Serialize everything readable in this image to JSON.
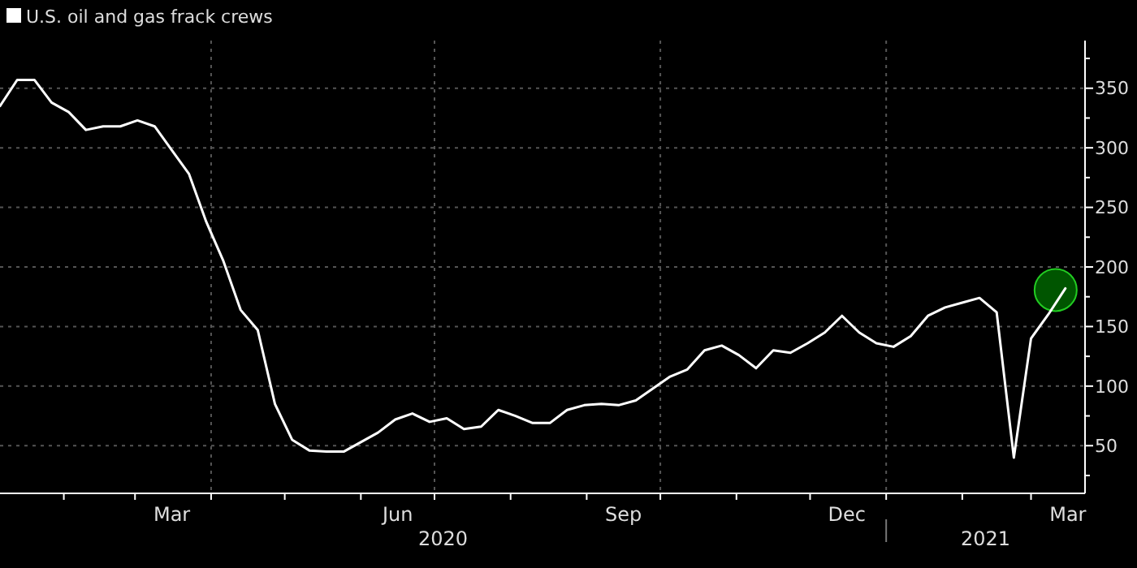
{
  "chart_data": {
    "type": "line",
    "legend": "top left",
    "grid": "y",
    "line_style": "solid",
    "marker": "none",
    "x": [
      "2020-01-06",
      "2020-01-13",
      "2020-01-20",
      "2020-01-27",
      "2020-02-03",
      "2020-02-10",
      "2020-02-17",
      "2020-02-24",
      "2020-03-02",
      "2020-03-09",
      "2020-03-16",
      "2020-03-23",
      "2020-03-30",
      "2020-04-06",
      "2020-04-13",
      "2020-04-20",
      "2020-04-27",
      "2020-05-04",
      "2020-05-11",
      "2020-05-18",
      "2020-05-25",
      "2020-06-01",
      "2020-06-08",
      "2020-06-15",
      "2020-06-22",
      "2020-06-29",
      "2020-07-06",
      "2020-07-13",
      "2020-07-20",
      "2020-07-27",
      "2020-08-03",
      "2020-08-10",
      "2020-08-17",
      "2020-08-24",
      "2020-08-31",
      "2020-09-07",
      "2020-09-14",
      "2020-09-21",
      "2020-09-28",
      "2020-10-05",
      "2020-10-12",
      "2020-10-19",
      "2020-10-26",
      "2020-11-02",
      "2020-11-09",
      "2020-11-16",
      "2020-11-23",
      "2020-11-30",
      "2020-12-07",
      "2020-12-14",
      "2020-12-21",
      "2020-12-28",
      "2021-01-04",
      "2021-01-11",
      "2021-01-18",
      "2021-01-25",
      "2021-02-01",
      "2021-02-08",
      "2021-02-15",
      "2021-02-22",
      "2021-03-01",
      "2021-03-08",
      "2021-03-15"
    ],
    "series": [
      {
        "name": "U.S. oil and gas frack crews",
        "color": "#ffffff",
        "values": [
          335,
          357,
          357,
          338,
          330,
          315,
          318,
          318,
          323,
          318,
          298,
          278,
          238,
          205,
          164,
          147,
          85,
          55,
          46,
          45,
          45,
          53,
          61,
          72,
          77,
          70,
          73,
          64,
          66,
          80,
          75,
          69,
          69,
          80,
          84,
          85,
          84,
          88,
          98,
          108,
          114,
          130,
          134,
          126,
          115,
          130,
          128,
          136,
          145,
          159,
          145,
          136,
          133,
          142,
          159,
          166,
          170,
          174,
          162,
          40,
          140,
          160,
          182
        ]
      }
    ],
    "xlim": [
      "2020-01-06",
      "2021-03-23"
    ],
    "xticks": [
      {
        "value": "2020-02-01",
        "label": null
      },
      {
        "value": "2020-03-01",
        "label": null
      },
      {
        "value": "2020-03-16",
        "label": "Mar"
      },
      {
        "value": "2020-04-01",
        "label": null
      },
      {
        "value": "2020-05-01",
        "label": null
      },
      {
        "value": "2020-06-01",
        "label": null
      },
      {
        "value": "2020-06-16",
        "label": "Jun"
      },
      {
        "value": "2020-07-01",
        "label": null
      },
      {
        "value": "2020-08-01",
        "label": null
      },
      {
        "value": "2020-09-01",
        "label": null
      },
      {
        "value": "2020-09-16",
        "label": "Sep"
      },
      {
        "value": "2020-10-01",
        "label": null
      },
      {
        "value": "2020-11-01",
        "label": null
      },
      {
        "value": "2020-12-01",
        "label": null
      },
      {
        "value": "2020-12-16",
        "label": "Dec"
      },
      {
        "value": "2021-01-01",
        "label": null
      },
      {
        "value": "2021-02-01",
        "label": null
      },
      {
        "value": "2021-03-01",
        "label": null
      },
      {
        "value": "2021-03-16",
        "label": "Mar"
      }
    ],
    "ylim": [
      10,
      390
    ],
    "yticks": [
      {
        "value": 25,
        "label": null
      },
      50,
      {
        "value": 75,
        "label": null
      },
      100,
      {
        "value": 125,
        "label": null
      },
      150,
      {
        "value": 175,
        "label": null
      },
      200,
      {
        "value": 225,
        "label": null
      },
      250,
      {
        "value": 275,
        "label": null
      },
      300,
      {
        "value": 325,
        "label": null
      },
      350,
      {
        "value": 375,
        "label": null
      }
    ],
    "ref_lines": [
      {
        "axis": "x",
        "value": "2020-04-01",
        "color": "#555555",
        "line_style": "dotted"
      },
      {
        "axis": "x",
        "value": "2020-07-01",
        "color": "#555555",
        "line_style": "dotted"
      },
      {
        "axis": "x",
        "value": "2020-10-01",
        "color": "#555555",
        "line_style": "dotted"
      },
      {
        "axis": "x",
        "value": "2021-01-01",
        "color": "#555555",
        "line_style": "dotted"
      }
    ],
    "annotations": [
      "2020",
      "2021"
    ]
  }
}
